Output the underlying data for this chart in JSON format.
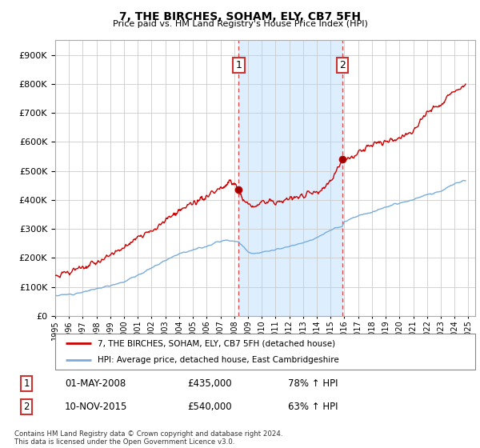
{
  "title": "7, THE BIRCHES, SOHAM, ELY, CB7 5FH",
  "subtitle": "Price paid vs. HM Land Registry's House Price Index (HPI)",
  "ytick_values": [
    0,
    100000,
    200000,
    300000,
    400000,
    500000,
    600000,
    700000,
    800000,
    900000
  ],
  "ylim": [
    0,
    950000
  ],
  "xlim_start": 1995.0,
  "xlim_end": 2025.5,
  "grid_color": "#cccccc",
  "shaded_region_color": "#ddeeff",
  "marker1_date": 2008.33,
  "marker1_value": 435000,
  "marker1_label": "1",
  "marker2_date": 2015.85,
  "marker2_value": 540000,
  "marker2_label": "2",
  "vline_color": "#dd4444",
  "red_line_color": "#cc0000",
  "blue_line_color": "#7aaddb",
  "legend_red_label": "7, THE BIRCHES, SOHAM, ELY, CB7 5FH (detached house)",
  "legend_blue_label": "HPI: Average price, detached house, East Cambridgeshire",
  "table_row1": [
    "1",
    "01-MAY-2008",
    "£435,000",
    "78% ↑ HPI"
  ],
  "table_row2": [
    "2",
    "10-NOV-2015",
    "£540,000",
    "63% ↑ HPI"
  ],
  "footer": "Contains HM Land Registry data © Crown copyright and database right 2024.\nThis data is licensed under the Open Government Licence v3.0."
}
